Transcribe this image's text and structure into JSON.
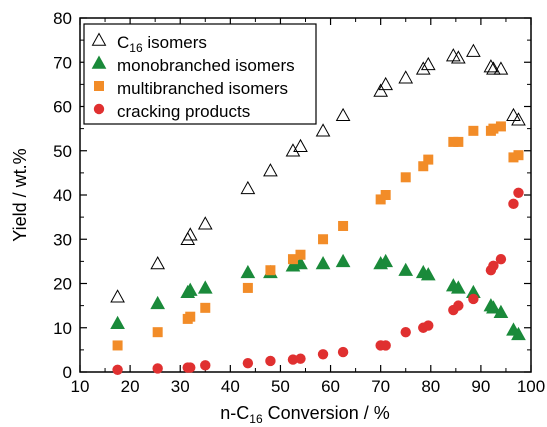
{
  "chart_data": {
    "type": "scatter",
    "xlabel": {
      "main": "n-C",
      "sub": "16",
      "rest": " Conversion /  %"
    },
    "ylabel": "Yield  /  wt.%",
    "xlim": [
      10,
      100
    ],
    "ylim": [
      0,
      80
    ],
    "xticks": [
      "10",
      "20",
      "30",
      "40",
      "50",
      "60",
      "70",
      "80",
      "90",
      "100"
    ],
    "yticks": [
      "0",
      "10",
      "20",
      "30",
      "40",
      "50",
      "60",
      "70",
      "80"
    ],
    "grid": false,
    "legend_position": "top-left",
    "series": [
      {
        "name": "C16 isomers",
        "name_parts": {
          "main": "C",
          "sub": "16",
          "rest": " isomers"
        },
        "marker": "triangle-open",
        "color": "#000000",
        "x": [
          17.5,
          25.5,
          31.5,
          32.0,
          35.0,
          43.5,
          48.0,
          52.5,
          54.0,
          58.5,
          62.5,
          70.0,
          71.0,
          75.0,
          78.5,
          79.5,
          84.5,
          85.5,
          88.5,
          92.0,
          92.5,
          94.0,
          96.5,
          97.5
        ],
        "y": [
          17.0,
          24.5,
          30.0,
          31.0,
          33.5,
          41.5,
          45.5,
          50.0,
          51.0,
          54.5,
          58.0,
          63.5,
          65.0,
          66.5,
          68.5,
          69.5,
          71.5,
          71.0,
          72.5,
          69.0,
          68.5,
          68.5,
          58.0,
          57.0
        ]
      },
      {
        "name": "monobranched isomers",
        "marker": "triangle-filled",
        "color": "#1a8a3a",
        "x": [
          17.5,
          25.5,
          31.5,
          32.0,
          35.0,
          43.5,
          48.0,
          52.5,
          54.0,
          58.5,
          62.5,
          70.0,
          71.0,
          75.0,
          78.5,
          79.5,
          84.5,
          85.5,
          88.5,
          92.0,
          92.5,
          94.0,
          96.5,
          97.5
        ],
        "y": [
          11.0,
          15.5,
          18.0,
          18.5,
          19.0,
          22.5,
          22.5,
          24.0,
          24.5,
          24.5,
          25.0,
          24.5,
          25.0,
          23.0,
          22.5,
          22.0,
          19.5,
          19.0,
          18.0,
          15.0,
          14.5,
          13.5,
          9.5,
          8.5
        ]
      },
      {
        "name": "multibranched isomers",
        "marker": "square-filled",
        "color": "#f28c28",
        "x": [
          17.5,
          25.5,
          31.5,
          32.0,
          35.0,
          43.5,
          48.0,
          52.5,
          54.0,
          58.5,
          62.5,
          70.0,
          71.0,
          75.0,
          78.5,
          79.5,
          84.5,
          85.5,
          88.5,
          92.0,
          92.5,
          94.0,
          96.5,
          97.5
        ],
        "y": [
          6.0,
          9.0,
          12.0,
          12.5,
          14.5,
          19.0,
          23.0,
          25.5,
          26.5,
          30.0,
          33.0,
          39.0,
          40.0,
          44.0,
          46.5,
          48.0,
          52.0,
          52.0,
          54.5,
          54.5,
          55.0,
          55.5,
          48.5,
          49.0
        ]
      },
      {
        "name": "cracking products",
        "marker": "circle-filled",
        "color": "#e03030",
        "x": [
          17.5,
          25.5,
          31.5,
          32.0,
          35.0,
          43.5,
          48.0,
          52.5,
          54.0,
          58.5,
          62.5,
          70.0,
          71.0,
          75.0,
          78.5,
          79.5,
          84.5,
          85.5,
          88.5,
          92.0,
          92.5,
          94.0,
          96.5,
          97.5
        ],
        "y": [
          0.5,
          0.8,
          1.0,
          1.0,
          1.5,
          2.0,
          2.5,
          2.8,
          3.0,
          4.0,
          4.5,
          6.0,
          6.0,
          9.0,
          10.0,
          10.5,
          14.0,
          15.0,
          16.5,
          23.0,
          24.0,
          25.5,
          38.0,
          40.5
        ]
      }
    ]
  }
}
